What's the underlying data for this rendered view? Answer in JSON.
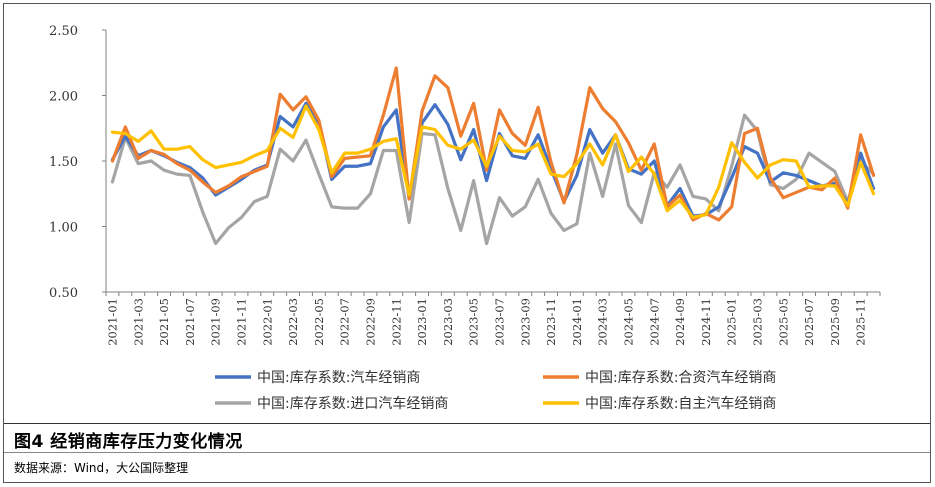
{
  "figure": {
    "caption": "图4 经销商库存压力变化情况",
    "source": "数据来源：Wind，大公国际整理"
  },
  "chart_data": {
    "type": "line",
    "ylim": [
      0.5,
      2.5
    ],
    "yticks": [
      "2.50",
      "2.00",
      "1.50",
      "1.00",
      "0.50"
    ],
    "ytick_values": [
      2.5,
      2.0,
      1.5,
      1.0,
      0.5
    ],
    "grid": false,
    "legend_position": "bottom",
    "x": [
      "2021-01",
      "2021-02",
      "2021-03",
      "2021-04",
      "2021-05",
      "2021-06",
      "2021-07",
      "2021-08",
      "2021-09",
      "2021-10",
      "2021-11",
      "2021-12",
      "2022-01",
      "2022-02",
      "2022-03",
      "2022-04",
      "2022-05",
      "2022-06",
      "2022-07",
      "2022-08",
      "2022-09",
      "2022-10",
      "2022-11",
      "2022-12",
      "2023-01",
      "2023-02",
      "2023-03",
      "2023-04",
      "2023-05",
      "2023-06",
      "2023-07",
      "2023-08",
      "2023-09",
      "2023-10",
      "2023-11",
      "2023-12",
      "2024-01",
      "2024-02",
      "2024-03",
      "2024-04",
      "2024-05",
      "2024-06",
      "2024-07",
      "2024-08",
      "2024-09",
      "2024-10",
      "2024-11",
      "2024-12",
      "2025-01",
      "2025-02",
      "2025-03",
      "2025-04",
      "2025-05",
      "2025-06",
      "2025-07",
      "2025-08",
      "2025-09",
      "2025-10",
      "2025-11",
      "2025-12"
    ],
    "xtick_labels": [
      "2021-01",
      "2021-03",
      "2021-05",
      "2021-07",
      "2021-09",
      "2021-11",
      "2022-01",
      "2022-03",
      "2022-05",
      "2022-07",
      "2022-09",
      "2022-11",
      "2023-01",
      "2023-03",
      "2023-05",
      "2023-07",
      "2023-09",
      "2023-11",
      "2024-01",
      "2024-03",
      "2024-05",
      "2024-07",
      "2024-09",
      "2024-11",
      "2025-01",
      "2025-03",
      "2025-05",
      "2025-07",
      "2025-09",
      "2025-11"
    ],
    "series": [
      {
        "name": "中国:库存系数:汽车经销商",
        "color": "#4472C4",
        "values": [
          1.51,
          1.69,
          1.54,
          1.58,
          1.54,
          1.49,
          1.45,
          1.37,
          1.24,
          1.3,
          1.36,
          1.43,
          1.47,
          1.84,
          1.76,
          1.94,
          1.79,
          1.36,
          1.46,
          1.46,
          1.48,
          1.76,
          1.89,
          1.21,
          1.79,
          1.93,
          1.78,
          1.51,
          1.74,
          1.35,
          1.71,
          1.54,
          1.52,
          1.7,
          1.44,
          1.19,
          1.39,
          1.74,
          1.56,
          1.7,
          1.44,
          1.4,
          1.5,
          1.16,
          1.29,
          1.08,
          1.09,
          1.15,
          1.37,
          1.61,
          1.56,
          1.34,
          1.41,
          1.39,
          1.35,
          1.31,
          1.33,
          1.17,
          1.56,
          1.29
        ]
      },
      {
        "name": "中国:库存系数:合资汽车经销商",
        "color": "#ED7D31",
        "values": [
          1.5,
          1.76,
          1.52,
          1.58,
          1.55,
          1.48,
          1.43,
          1.34,
          1.26,
          1.31,
          1.38,
          1.42,
          1.46,
          2.01,
          1.89,
          1.99,
          1.81,
          1.38,
          1.52,
          1.53,
          1.54,
          1.85,
          2.21,
          1.21,
          1.88,
          2.15,
          2.06,
          1.69,
          1.94,
          1.43,
          1.89,
          1.71,
          1.62,
          1.91,
          1.49,
          1.18,
          1.55,
          2.06,
          1.9,
          1.8,
          1.64,
          1.43,
          1.63,
          1.15,
          1.24,
          1.05,
          1.1,
          1.05,
          1.15,
          1.71,
          1.75,
          1.37,
          1.22,
          1.26,
          1.3,
          1.28,
          1.37,
          1.14,
          1.7,
          1.39
        ]
      },
      {
        "name": "中国:库存系数:进口汽车经销商",
        "color": "#A5A5A5",
        "values": [
          1.34,
          1.68,
          1.48,
          1.5,
          1.43,
          1.4,
          1.39,
          1.11,
          0.87,
          0.99,
          1.07,
          1.19,
          1.23,
          1.59,
          1.5,
          1.66,
          1.4,
          1.15,
          1.14,
          1.14,
          1.25,
          1.58,
          1.58,
          1.03,
          1.71,
          1.7,
          1.29,
          0.97,
          1.35,
          0.87,
          1.22,
          1.08,
          1.15,
          1.36,
          1.1,
          0.97,
          1.02,
          1.56,
          1.23,
          1.63,
          1.16,
          1.03,
          1.41,
          1.3,
          1.47,
          1.23,
          1.21,
          1.12,
          1.46,
          1.85,
          1.73,
          1.32,
          1.29,
          1.36,
          1.56,
          1.49,
          1.42,
          1.19,
          1.5,
          1.4
        ]
      },
      {
        "name": "中国:库存系数:自主汽车经销商",
        "color": "#FFC000",
        "values": [
          1.72,
          1.71,
          1.65,
          1.73,
          1.59,
          1.59,
          1.61,
          1.51,
          1.45,
          1.47,
          1.49,
          1.54,
          1.58,
          1.75,
          1.68,
          1.92,
          1.74,
          1.41,
          1.56,
          1.56,
          1.59,
          1.65,
          1.67,
          1.24,
          1.76,
          1.74,
          1.62,
          1.59,
          1.66,
          1.46,
          1.69,
          1.58,
          1.57,
          1.63,
          1.4,
          1.38,
          1.48,
          1.63,
          1.47,
          1.7,
          1.42,
          1.53,
          1.4,
          1.12,
          1.2,
          1.07,
          1.09,
          1.3,
          1.64,
          1.49,
          1.37,
          1.47,
          1.51,
          1.5,
          1.3,
          1.31,
          1.31,
          1.16,
          1.49,
          1.25
        ]
      }
    ]
  }
}
